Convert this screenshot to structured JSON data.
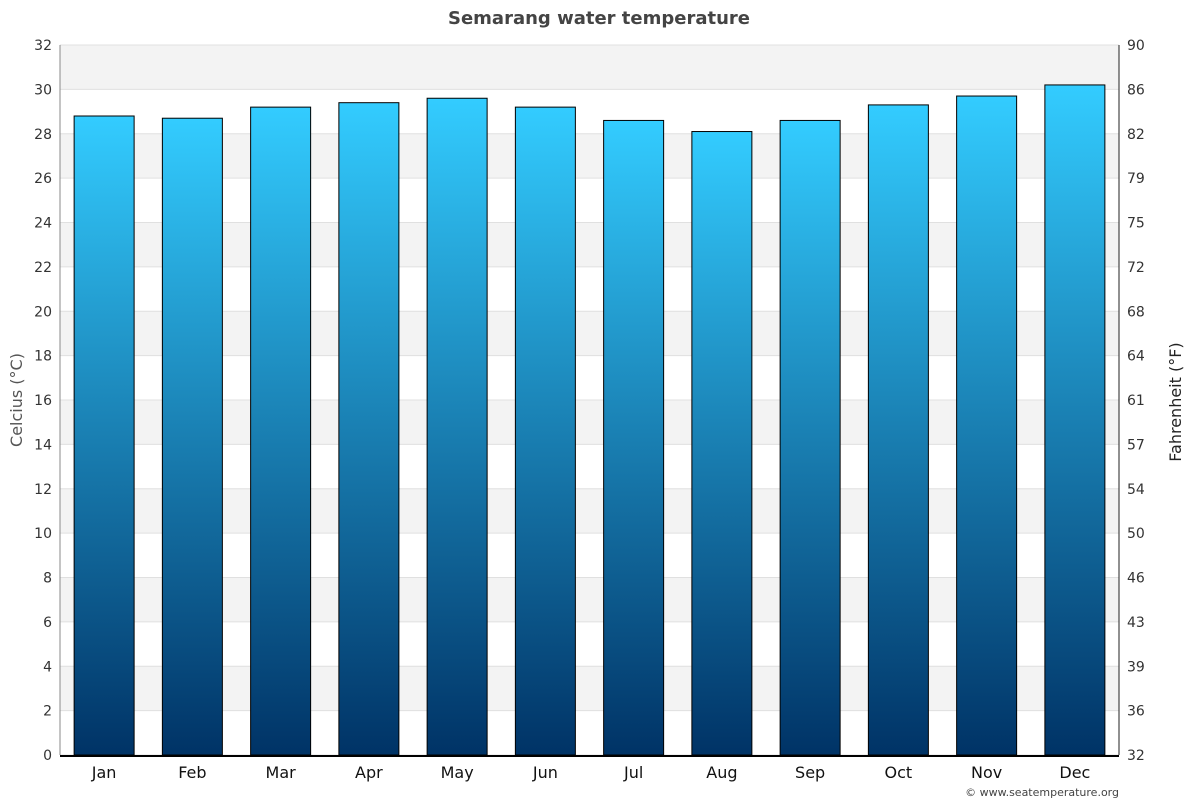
{
  "chart_data": {
    "type": "bar",
    "title": "Semarang water temperature",
    "categories": [
      "Jan",
      "Feb",
      "Mar",
      "Apr",
      "May",
      "Jun",
      "Jul",
      "Aug",
      "Sep",
      "Oct",
      "Nov",
      "Dec"
    ],
    "values": [
      28.8,
      28.7,
      29.2,
      29.4,
      29.6,
      29.2,
      28.6,
      28.1,
      28.6,
      29.3,
      29.7,
      30.2
    ],
    "ylabel": "Celcius (°C)",
    "ylabel_right": "Fahrenheit (°F)",
    "ylim": [
      0,
      32
    ],
    "yticks": [
      "0",
      "2",
      "4",
      "6",
      "8",
      "10",
      "12",
      "14",
      "16",
      "18",
      "20",
      "22",
      "24",
      "26",
      "28",
      "30",
      "32"
    ],
    "yticks_right": [
      "32",
      "36",
      "39",
      "43",
      "46",
      "50",
      "54",
      "57",
      "61",
      "64",
      "68",
      "72",
      "75",
      "79",
      "82",
      "86",
      "90"
    ],
    "grid": true,
    "bar_color_top": "#33ccff",
    "bar_color_bottom": "#003366"
  },
  "credit": "© www.seatemperature.org"
}
